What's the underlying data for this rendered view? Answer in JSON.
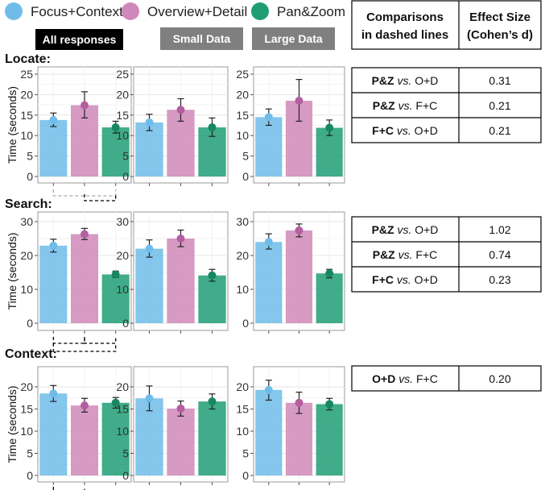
{
  "legend": [
    {
      "name": "Focus+Context",
      "color": "#6fbce9"
    },
    {
      "name": "Overview+Detail",
      "color": "#cf88b9"
    },
    {
      "name": "Pan&Zoom",
      "color": "#1f9e74"
    }
  ],
  "headers": [
    "All responses",
    "Small Data",
    "Large Data"
  ],
  "ylabel": "Time (seconds)",
  "table_header": {
    "col1_line1": "Comparisons",
    "col1_line2": "in dashed lines",
    "col2_line1": "Effect Size",
    "col2_line2": "(Cohen’s d)"
  },
  "vs_word": "vs.",
  "chart_data": [
    {
      "type": "bar",
      "task": "Locate:",
      "ylim": [
        0,
        26
      ],
      "yticks": [
        0,
        5,
        10,
        15,
        20,
        25
      ],
      "panels": [
        {
          "panel": "All responses",
          "values": [
            13.8,
            17.4,
            12.0
          ],
          "lower": [
            12.2,
            14.3,
            10.6
          ],
          "upper": [
            15.5,
            20.7,
            13.5
          ]
        },
        {
          "panel": "Small Data",
          "values": [
            13.2,
            16.3,
            12.0
          ],
          "lower": [
            11.2,
            13.5,
            9.8
          ],
          "upper": [
            15.2,
            19.0,
            14.3
          ]
        },
        {
          "panel": "Large Data",
          "values": [
            14.5,
            18.5,
            11.9
          ],
          "lower": [
            12.5,
            13.5,
            10.0
          ],
          "upper": [
            16.5,
            23.7,
            13.8
          ]
        }
      ],
      "comparisons": [
        {
          "a": "P&Z",
          "b": "O+D",
          "d": "0.31"
        },
        {
          "a": "P&Z",
          "b": "F+C",
          "d": "0.21"
        },
        {
          "a": "F+C",
          "b": "O+D",
          "d": "0.21"
        }
      ]
    },
    {
      "type": "bar",
      "task": "Search:",
      "ylim": [
        0,
        31
      ],
      "yticks": [
        0,
        10,
        20,
        30
      ],
      "panels": [
        {
          "panel": "All responses",
          "values": [
            22.9,
            26.3,
            14.4
          ],
          "lower": [
            21.0,
            24.7,
            13.5
          ],
          "upper": [
            24.8,
            28.0,
            15.4
          ]
        },
        {
          "panel": "Small Data",
          "values": [
            22.0,
            25.0,
            14.1
          ],
          "lower": [
            19.5,
            22.6,
            12.4
          ],
          "upper": [
            24.6,
            27.5,
            15.9
          ]
        },
        {
          "panel": "Large Data",
          "values": [
            24.0,
            27.4,
            14.7
          ],
          "lower": [
            21.9,
            25.5,
            13.4
          ],
          "upper": [
            26.4,
            29.3,
            15.9
          ]
        }
      ],
      "comparisons": [
        {
          "a": "P&Z",
          "b": "O+D",
          "d": "1.02"
        },
        {
          "a": "P&Z",
          "b": "F+C",
          "d": "0.74"
        },
        {
          "a": "F+C",
          "b": "O+D",
          "d": "0.23"
        }
      ]
    },
    {
      "type": "bar",
      "task": "Context:",
      "ylim": [
        0,
        23
      ],
      "yticks": [
        0,
        5,
        10,
        15,
        20
      ],
      "panels": [
        {
          "panel": "All responses",
          "values": [
            18.5,
            15.8,
            16.4
          ],
          "lower": [
            16.7,
            14.3,
            15.2
          ],
          "upper": [
            20.3,
            17.4,
            17.6
          ]
        },
        {
          "panel": "Small Data",
          "values": [
            17.4,
            15.1,
            16.7
          ],
          "lower": [
            14.6,
            13.4,
            15.0
          ],
          "upper": [
            20.2,
            16.8,
            18.4
          ]
        },
        {
          "panel": "Large Data",
          "values": [
            19.3,
            16.4,
            16.1
          ],
          "lower": [
            17.0,
            14.0,
            14.8
          ],
          "upper": [
            21.5,
            18.8,
            17.4
          ]
        }
      ],
      "comparisons": [
        {
          "a": "O+D",
          "b": "F+C",
          "d": "0.20"
        }
      ]
    }
  ]
}
